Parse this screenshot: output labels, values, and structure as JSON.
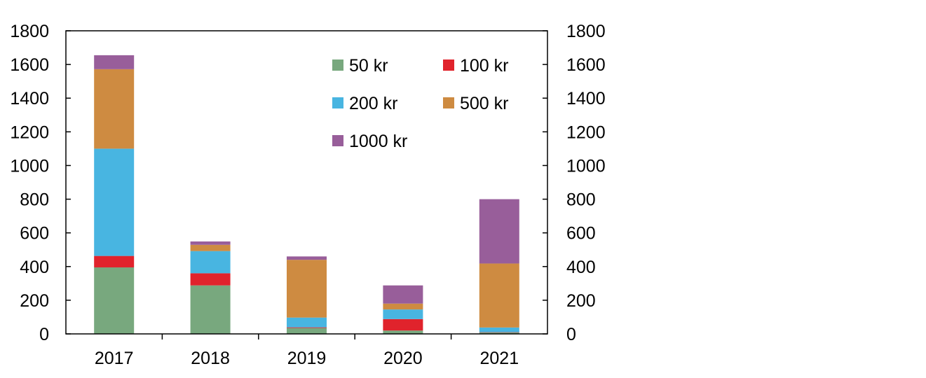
{
  "chart_data": {
    "type": "bar",
    "stacked": true,
    "categories": [
      "2017",
      "2018",
      "2019",
      "2020",
      "2021"
    ],
    "series": [
      {
        "name": "50 kr",
        "color": "#78A87E",
        "values": [
          395,
          288,
          35,
          20,
          8
        ]
      },
      {
        "name": "100 kr",
        "color": "#E0232C",
        "values": [
          68,
          72,
          4,
          68,
          2
        ]
      },
      {
        "name": "200 kr",
        "color": "#48B5E1",
        "values": [
          637,
          132,
          58,
          57,
          28
        ]
      },
      {
        "name": "500 kr",
        "color": "#CE8B41",
        "values": [
          472,
          37,
          343,
          35,
          380
        ]
      },
      {
        "name": "1000 kr",
        "color": "#985E9A",
        "values": [
          83,
          20,
          20,
          108,
          382
        ]
      }
    ],
    "ylim": [
      0,
      1800
    ],
    "yticks": [
      "0",
      "200",
      "400",
      "600",
      "800",
      "1000",
      "1200",
      "1400",
      "1600",
      "1800"
    ],
    "y2ticks": [
      "0",
      "200",
      "400",
      "600",
      "800",
      "1000",
      "1200",
      "1400",
      "1600",
      "1800"
    ],
    "legend_position": "top-right, inside plot",
    "grid": false
  }
}
